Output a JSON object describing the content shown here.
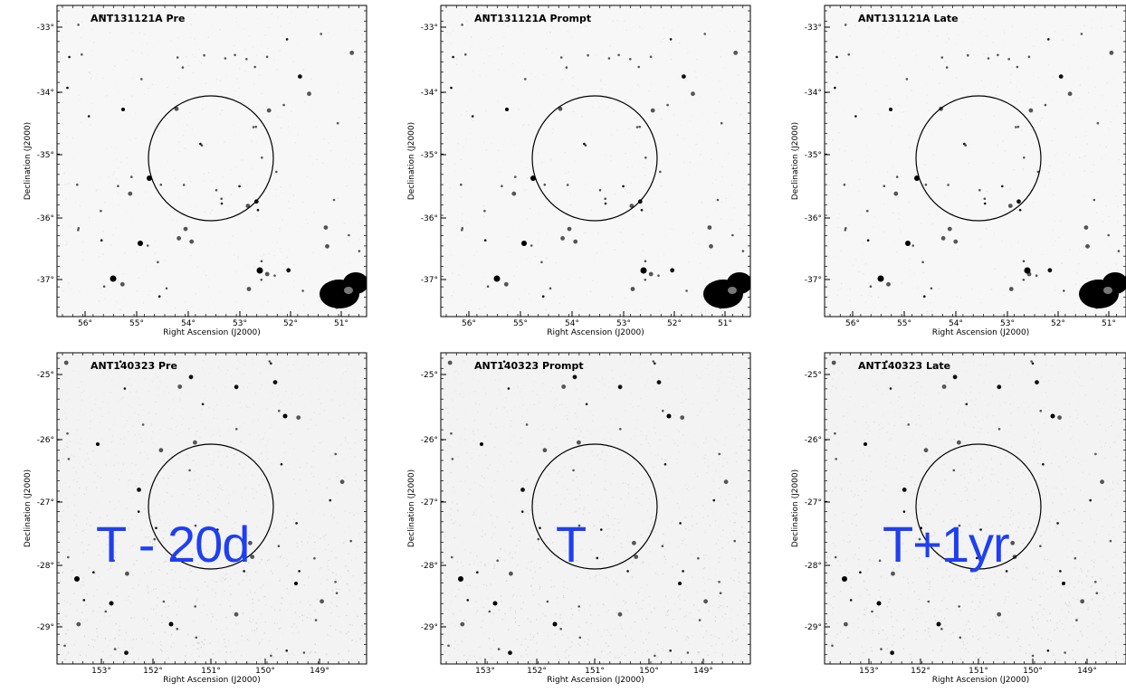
{
  "figure": {
    "panels": [
      {
        "title": "ANT131121A Pre",
        "ra_ticks": [
          "56°",
          "55°",
          "54°",
          "53°",
          "52°",
          "51°"
        ],
        "dec_ticks": [
          "-33°",
          "-34°",
          "-35°",
          "-36°",
          "-37°"
        ],
        "xlabel": "Right Ascension (J2000)",
        "ylabel": "Declination (J2000)"
      },
      {
        "title": "ANT131121A Prompt",
        "ra_ticks": [
          "56°",
          "55°",
          "54°",
          "53°",
          "52°",
          "51°"
        ],
        "dec_ticks": [
          "-33°",
          "-34°",
          "-35°",
          "-36°",
          "-37°"
        ],
        "xlabel": "Right Ascension (J2000)",
        "ylabel": "Declination (J2000)"
      },
      {
        "title": "ANT131121A Late",
        "ra_ticks": [
          "56°",
          "55°",
          "54°",
          "53°",
          "52°",
          "51°"
        ],
        "dec_ticks": [
          "-33°",
          "-34°",
          "-35°",
          "-36°",
          "-37°"
        ],
        "xlabel": "Right Ascension (J2000)",
        "ylabel": "Declination (J2000)"
      },
      {
        "title": "ANT140323 Pre",
        "ra_ticks": [
          "153°",
          "152°",
          "151°",
          "150°",
          "149°"
        ],
        "dec_ticks": [
          "-25°",
          "-26°",
          "-27°",
          "-28°",
          "-29°"
        ],
        "xlabel": "Right Ascension (J2000)",
        "ylabel": "Declination (J2000)"
      },
      {
        "title": "ANT140323 Prompt",
        "ra_ticks": [
          "153°",
          "152°",
          "151°",
          "150°",
          "149°"
        ],
        "dec_ticks": [
          "-25°",
          "-26°",
          "-27°",
          "-28°",
          "-29°"
        ],
        "xlabel": "Right Ascension (J2000)",
        "ylabel": "Declination (J2000)"
      },
      {
        "title": "ANT140323 Late",
        "ra_ticks": [
          "153°",
          "152°",
          "151°",
          "150°",
          "149°"
        ],
        "dec_ticks": [
          "-25°",
          "-26°",
          "-27°",
          "-28°",
          "-29°"
        ],
        "xlabel": "Right Ascension (J2000)",
        "ylabel": "Declination (J2000)"
      }
    ],
    "overlay_labels": [
      "T - 20d",
      "T",
      "T+1yr"
    ],
    "overlay_color": "#1f3ff0"
  }
}
